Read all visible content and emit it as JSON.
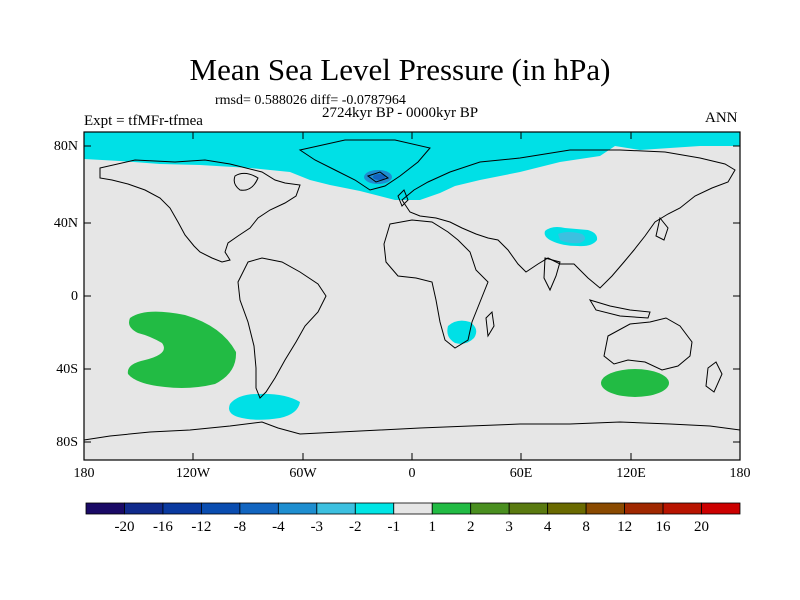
{
  "map": {
    "title": "Mean Sea Level Pressure (in hPa)",
    "stats": "rmsd= 0.588026 diff= -0.0787964",
    "period": "2724kyr BP - 0000kyr BP",
    "experiment": "Expt = tfMFr-tfmea",
    "season": "ANN",
    "lat_labels": [
      "80N",
      "40N",
      "0",
      "40S",
      "80S"
    ],
    "lon_labels": [
      "180",
      "120W",
      "60W",
      "0",
      "60E",
      "120E",
      "180"
    ],
    "background_color": "#e6e6e6"
  },
  "colorbar": {
    "labels": [
      "-20",
      "-16",
      "-12",
      "-8",
      "-4",
      "-3",
      "-2",
      "-1",
      "1",
      "2",
      "3",
      "4",
      "8",
      "12",
      "16",
      "20"
    ],
    "colors": [
      "#1a0a66",
      "#102a8c",
      "#0a3aa0",
      "#0a4db0",
      "#1265c0",
      "#1e8ed0",
      "#3cc0e0",
      "#00e5e5",
      "#e6e6e6",
      "#22bb44",
      "#4a8f20",
      "#5a7a10",
      "#6a6a00",
      "#8a4a00",
      "#a02800",
      "#b81400",
      "#cc0000"
    ]
  },
  "anomalies": [
    {
      "region": "Arctic / North Atlantic",
      "value_range": "-2 to -1"
    },
    {
      "region": "Greenland",
      "value_range": "-3 to -2"
    },
    {
      "region": "Tibetan Plateau",
      "value_range": "-3 to -1"
    },
    {
      "region": "Southern Africa",
      "value_range": "-2 to -1"
    },
    {
      "region": "South Pacific",
      "value_range": "1 to 2"
    },
    {
      "region": "South of Australia",
      "value_range": "1 to 2"
    },
    {
      "region": "Drake Passage",
      "value_range": "-2 to -1"
    }
  ]
}
